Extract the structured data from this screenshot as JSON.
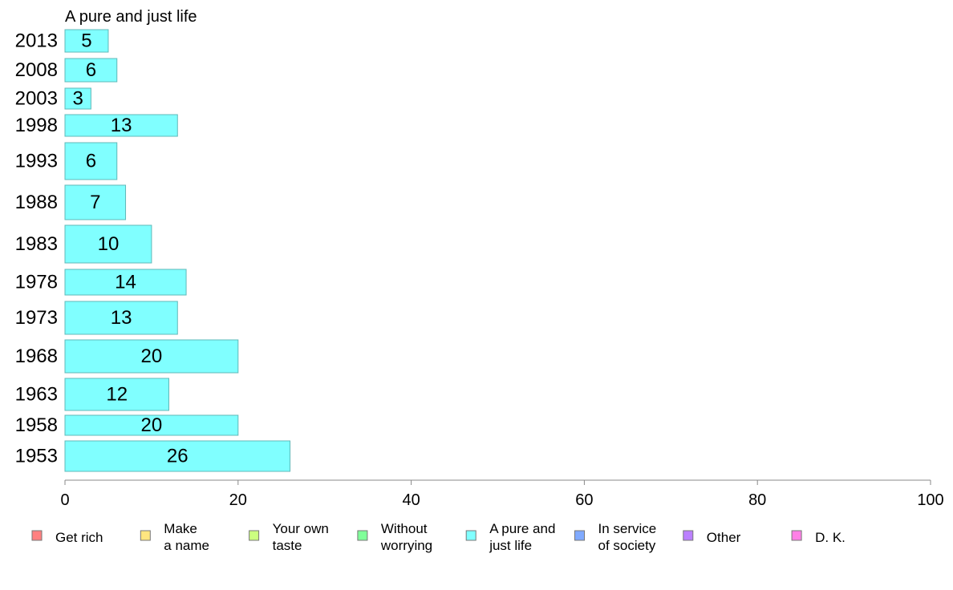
{
  "chart_data": {
    "type": "bar",
    "orientation": "horizontal",
    "title": "A pure and just life",
    "categories": [
      "2013",
      "2008",
      "2003",
      "1998",
      "1993",
      "1988",
      "1983",
      "1978",
      "1973",
      "1968",
      "1963",
      "1958",
      "1953"
    ],
    "series": [
      {
        "name": "A pure and just life",
        "values": [
          5,
          6,
          3,
          13,
          6,
          7,
          10,
          14,
          13,
          20,
          12,
          20,
          26
        ]
      }
    ],
    "xlim": [
      0,
      100
    ],
    "xticks": [
      0,
      20,
      40,
      60,
      80,
      100
    ],
    "grid": false,
    "bar_color": "#80ffff",
    "bar_stroke": "#5fb8b8",
    "legend_position": "bottom",
    "legend": [
      {
        "lines": [
          "Get rich"
        ],
        "color": "#ff8080"
      },
      {
        "lines": [
          "Make",
          "a name"
        ],
        "color": "#ffe680"
      },
      {
        "lines": [
          "Your own",
          "taste"
        ],
        "color": "#ccff80"
      },
      {
        "lines": [
          "Without",
          "worrying"
        ],
        "color": "#80ff99"
      },
      {
        "lines": [
          "A pure and",
          "just life"
        ],
        "color": "#80ffff"
      },
      {
        "lines": [
          "In service",
          "of society"
        ],
        "color": "#80aaff"
      },
      {
        "lines": [
          "Other"
        ],
        "color": "#bb80ff"
      },
      {
        "lines": [
          "D. K."
        ],
        "color": "#ff80e6"
      }
    ]
  }
}
